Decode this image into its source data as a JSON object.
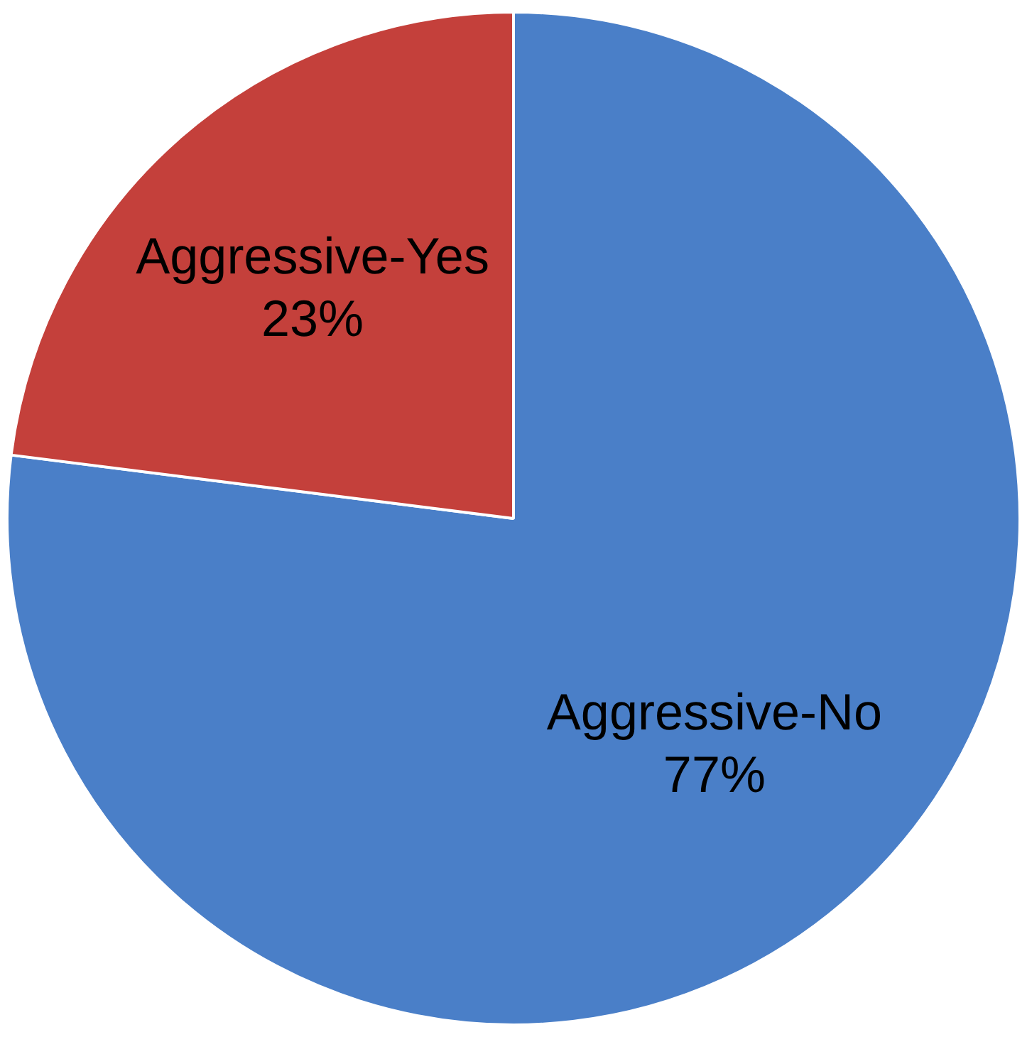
{
  "chart_data": {
    "type": "pie",
    "categories": [
      "Aggressive-No",
      "Aggressive-Yes"
    ],
    "values": [
      77,
      23
    ],
    "colors": [
      "#4a7fc8",
      "#c4403b"
    ],
    "value_labels": [
      "77%",
      "23%"
    ],
    "legend": false
  }
}
